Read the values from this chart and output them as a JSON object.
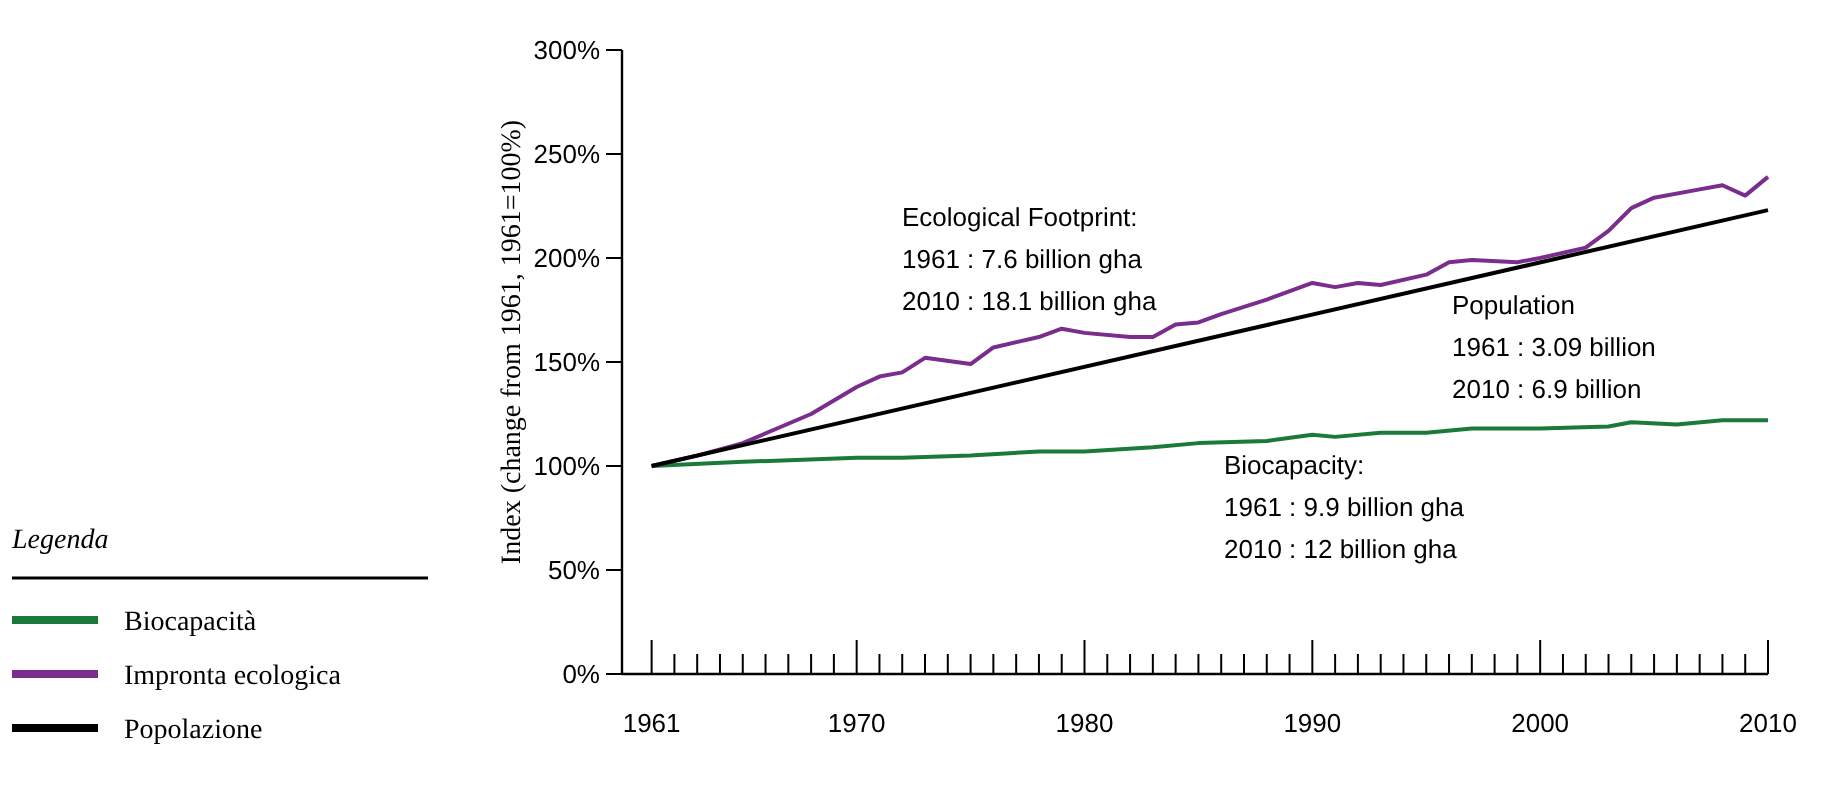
{
  "chart_data": {
    "type": "line",
    "ylabel": "Index (change from 1961, 1961=100%)",
    "legend_title": "Legenda",
    "legend": "left",
    "grid": false,
    "marker": "none",
    "line_style": "solid",
    "xlim": [
      1959.7,
      2010
    ],
    "ylim": [
      0,
      300
    ],
    "yticks": [
      {
        "value": 0,
        "label": "0%"
      },
      {
        "value": 50,
        "label": "50%"
      },
      {
        "value": 100,
        "label": "100%"
      },
      {
        "value": 150,
        "label": "150%"
      },
      {
        "value": 200,
        "label": "200%"
      },
      {
        "value": 250,
        "label": "250%"
      },
      {
        "value": 300,
        "label": "300%"
      }
    ],
    "xticks": [
      1961,
      {
        "value": 1962,
        "label": null
      },
      {
        "value": 1963,
        "label": null
      },
      {
        "value": 1964,
        "label": null
      },
      {
        "value": 1965,
        "label": null
      },
      {
        "value": 1966,
        "label": null
      },
      {
        "value": 1967,
        "label": null
      },
      {
        "value": 1968,
        "label": null
      },
      {
        "value": 1969,
        "label": null
      },
      1970,
      {
        "value": 1971,
        "label": null
      },
      {
        "value": 1972,
        "label": null
      },
      {
        "value": 1973,
        "label": null
      },
      {
        "value": 1974,
        "label": null
      },
      {
        "value": 1975,
        "label": null
      },
      {
        "value": 1976,
        "label": null
      },
      {
        "value": 1977,
        "label": null
      },
      {
        "value": 1978,
        "label": null
      },
      {
        "value": 1979,
        "label": null
      },
      1980,
      {
        "value": 1981,
        "label": null
      },
      {
        "value": 1982,
        "label": null
      },
      {
        "value": 1983,
        "label": null
      },
      {
        "value": 1984,
        "label": null
      },
      {
        "value": 1985,
        "label": null
      },
      {
        "value": 1986,
        "label": null
      },
      {
        "value": 1987,
        "label": null
      },
      {
        "value": 1988,
        "label": null
      },
      {
        "value": 1989,
        "label": null
      },
      1990,
      {
        "value": 1991,
        "label": null
      },
      {
        "value": 1992,
        "label": null
      },
      {
        "value": 1993,
        "label": null
      },
      {
        "value": 1994,
        "label": null
      },
      {
        "value": 1995,
        "label": null
      },
      {
        "value": 1996,
        "label": null
      },
      {
        "value": 1997,
        "label": null
      },
      {
        "value": 1998,
        "label": null
      },
      {
        "value": 1999,
        "label": null
      },
      2000,
      {
        "value": 2001,
        "label": null
      },
      {
        "value": 2002,
        "label": null
      },
      {
        "value": 2003,
        "label": null
      },
      {
        "value": 2004,
        "label": null
      },
      {
        "value": 2005,
        "label": null
      },
      {
        "value": 2006,
        "label": null
      },
      {
        "value": 2007,
        "label": null
      },
      {
        "value": 2008,
        "label": null
      },
      {
        "value": 2009,
        "label": null
      },
      2010
    ],
    "series": [
      {
        "name": "Biocapacità",
        "color": "#1a7a3a",
        "x": [
          1961,
          1965,
          1970,
          1972,
          1975,
          1978,
          1980,
          1983,
          1985,
          1988,
          1990,
          1991,
          1993,
          1995,
          1997,
          2000,
          2003,
          2004,
          2006,
          2008,
          2010
        ],
        "values": [
          100,
          102,
          104,
          104,
          105,
          107,
          107,
          109,
          111,
          112,
          115,
          114,
          116,
          116,
          118,
          118,
          119,
          121,
          120,
          122,
          122
        ]
      },
      {
        "name": "Impronta ecologica",
        "color": "#7b2d8e",
        "x": [
          1961,
          1963,
          1965,
          1968,
          1970,
          1971,
          1972,
          1973,
          1975,
          1976,
          1978,
          1979,
          1980,
          1982,
          1983,
          1984,
          1985,
          1986,
          1988,
          1990,
          1991,
          1992,
          1993,
          1995,
          1996,
          1997,
          1999,
          2000,
          2002,
          2003,
          2004,
          2005,
          2007,
          2008,
          2009,
          2010
        ],
        "values": [
          100,
          105,
          111,
          125,
          138,
          143,
          145,
          152,
          149,
          157,
          162,
          166,
          164,
          162,
          162,
          168,
          169,
          173,
          180,
          188,
          186,
          188,
          187,
          192,
          198,
          199,
          198,
          200,
          205,
          213,
          224,
          229,
          233,
          235,
          230,
          239
        ]
      },
      {
        "name": "Popolazione",
        "color": "#000000",
        "x": [
          1961,
          2010
        ],
        "values": [
          100,
          223
        ]
      }
    ],
    "annotations": [
      "Ecological Footprint:\n1961 : 7.6 billion gha\n2010 : 18.1 billion gha",
      "Population\n1961 : 3.09 billion\n2010 : 6.9 billion",
      "Biocapacity:\n1961 : 9.9 billion gha\n2010 : 12 billion gha"
    ]
  }
}
